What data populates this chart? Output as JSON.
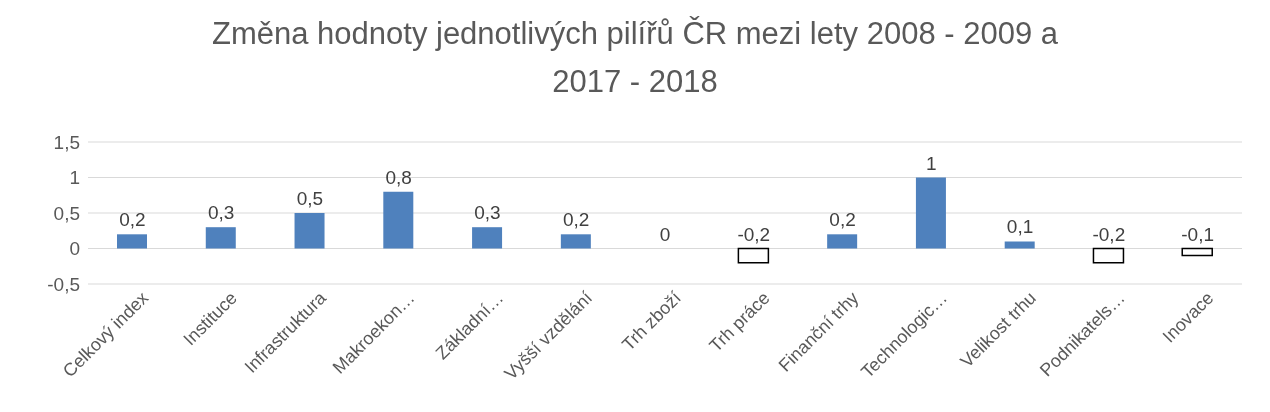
{
  "chart_data": {
    "type": "bar",
    "title": "Změna hodnoty jednotlivých pilířů ČR mezi lety 2008 - 2009 a 2017 - 2018",
    "categories": [
      "Celkový index",
      "Instituce",
      "Infrastruktura",
      "Makroekon…",
      "Základní…",
      "Vyšší vzdělání",
      "Trh zboží",
      "Trh práce",
      "Finanční trhy",
      "Technologic…",
      "Velikost trhu",
      "Podnikatels…",
      "Inovace"
    ],
    "values": [
      0.2,
      0.3,
      0.5,
      0.8,
      0.3,
      0.2,
      0,
      -0.2,
      0.2,
      1,
      0.1,
      -0.2,
      -0.1
    ],
    "colors": [
      "#4f81bd",
      "#4f81bd",
      "#4f81bd",
      "#4f81bd",
      "#4f81bd",
      "#4f81bd",
      "#4f81bd",
      "#ffffff",
      "#4f81bd",
      "#4f81bd",
      "#4f81bd",
      "#ffffff",
      "#ffffff"
    ],
    "value_labels": [
      "0,2",
      "0,3",
      "0,5",
      "0,8",
      "0,3",
      "0,2",
      "0",
      "-0,2",
      "0,2",
      "1",
      "0,1",
      "-0,2",
      "-0,1"
    ],
    "ylim": [
      -0.5,
      1.5
    ],
    "yticks": [
      {
        "value": -0.5,
        "label": "-0,5"
      },
      0,
      {
        "value": 0.5,
        "label": "0,5"
      },
      1,
      {
        "value": 1.5,
        "label": "1,5"
      }
    ],
    "grid": "y",
    "legend": false
  }
}
